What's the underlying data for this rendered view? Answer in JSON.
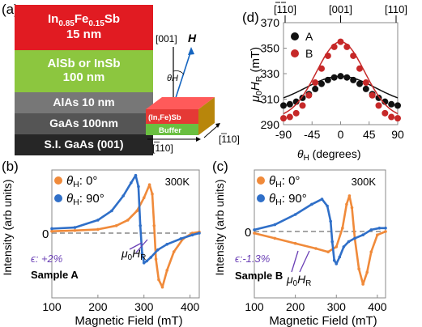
{
  "panel_a": {
    "label": "(a)",
    "layers": [
      {
        "line1": "In",
        "sub1": "0.85",
        "mid": "Fe",
        "sub2": "0.15",
        "end": "Sb",
        "line2": "15 nm",
        "color": "#e11b22"
      },
      {
        "line1": "AlSb or InSb",
        "line2": "100 nm",
        "color": "#8cc63f"
      },
      {
        "line1": "AlAs 10 nm",
        "color": "#777777"
      },
      {
        "line1": "GaAs 100nm",
        "color": "#555555"
      },
      {
        "line1": "S.I. GaAs (001)",
        "color": "#262626"
      }
    ],
    "crystal": {
      "axis_001": "[001]",
      "field_h": "H",
      "theta_h": "θH",
      "top_layer": "(In,Fe)Sb",
      "buffer": "Buffer",
      "dir_110": "[110]",
      "dir_m110": "[110]"
    }
  },
  "panel_d": {
    "label": "(d)",
    "top_labels": [
      "[110]",
      "[001]",
      "[110]"
    ],
    "ylabel": "μ0HR (mT)",
    "xlabel": "θH (degrees)",
    "legend": [
      "A",
      "B"
    ],
    "colors": {
      "A": "#111111",
      "B": "#c62828"
    }
  },
  "panel_b": {
    "label": "(b)",
    "legend_0": "θH: 0°",
    "legend_90": "θH: 90°",
    "temp": "300K",
    "strain": "ϵ: +2%",
    "sample": "Sample A",
    "hr_label": "μ0HR",
    "zero": "0",
    "ylabel": "Intensity (arb units)",
    "xlabel": "Magnetic Field (mT)",
    "colors": {
      "deg0": "#f08a3a",
      "deg90": "#2f6fc8"
    }
  },
  "panel_c": {
    "label": "(c)",
    "legend_0": "θH: 0°",
    "legend_90": "θH: 90°",
    "temp": "300K",
    "strain": "ϵ:-1.3%",
    "sample": "Sample B",
    "hr_label": "μ0HR",
    "zero": "0",
    "ylabel": "Intensity (arb units)",
    "xlabel": "Magnetic Field (mT)"
  },
  "chart_data": [
    {
      "type": "scatter",
      "title": "(d)",
      "xlabel": "θH (degrees)",
      "ylabel": "μ0HR (mT)",
      "xlim": [
        -90,
        90
      ],
      "ylim": [
        290,
        370
      ],
      "xticks": [
        -90,
        -45,
        0,
        45,
        90
      ],
      "yticks": [
        290,
        310,
        330,
        350,
        370
      ],
      "x": [
        -90,
        -80,
        -70,
        -60,
        -50,
        -40,
        -30,
        -20,
        -10,
        0,
        10,
        20,
        30,
        40,
        50,
        60,
        70,
        80,
        90
      ],
      "series": [
        {
          "name": "A",
          "values": [
            305,
            306,
            308,
            311,
            314,
            318,
            322,
            325,
            327,
            328,
            327,
            325,
            322,
            318,
            314,
            311,
            308,
            306,
            305
          ]
        },
        {
          "name": "B",
          "values": [
            295,
            296,
            299,
            305,
            313,
            323,
            334,
            344,
            351,
            355,
            351,
            344,
            334,
            323,
            313,
            305,
            299,
            296,
            295
          ]
        }
      ]
    },
    {
      "type": "line",
      "title": "(b)",
      "xlabel": "Magnetic Field (mT)",
      "ylabel": "Intensity (arb units)",
      "xlim": [
        100,
        420
      ],
      "xticks": [
        100,
        200,
        300,
        400
      ],
      "series": [
        {
          "name": "θH: 0°",
          "x": [
            100,
            150,
            200,
            240,
            265,
            285,
            300,
            312,
            318,
            322,
            326,
            332,
            340,
            350,
            365,
            385,
            405,
            420
          ],
          "values": [
            0.05,
            0.07,
            0.1,
            0.2,
            0.35,
            0.6,
            0.95,
            1.3,
            1.05,
            0.2,
            -0.7,
            -1.25,
            -1.45,
            -1.0,
            -0.5,
            -0.15,
            0.0,
            0.03
          ]
        },
        {
          "name": "θH: 90°",
          "x": [
            100,
            150,
            200,
            230,
            255,
            272,
            282,
            288,
            292,
            296,
            300,
            306,
            315,
            330,
            350,
            380,
            405,
            420
          ],
          "values": [
            0.12,
            0.15,
            0.35,
            0.6,
            1.0,
            1.35,
            1.55,
            1.25,
            0.2,
            -0.55,
            -0.8,
            -0.75,
            -0.65,
            -0.45,
            -0.3,
            -0.15,
            -0.05,
            0.0
          ]
        }
      ]
    },
    {
      "type": "line",
      "title": "(c)",
      "xlabel": "Magnetic Field (mT)",
      "ylabel": "Intensity (arb units)",
      "xlim": [
        100,
        420
      ],
      "xticks": [
        100,
        200,
        300,
        400
      ],
      "series": [
        {
          "name": "θH: 0°",
          "x": [
            100,
            150,
            200,
            250,
            280,
            300,
            315,
            325,
            332,
            338,
            345,
            355,
            365,
            375,
            385,
            400,
            420
          ],
          "values": [
            -0.05,
            -0.2,
            -0.35,
            -0.5,
            -0.6,
            -0.45,
            0.1,
            0.8,
            1.05,
            0.7,
            -0.2,
            -1.1,
            -1.55,
            -1.2,
            -0.6,
            -0.1,
            0.0
          ]
        },
        {
          "name": "θH: 90°",
          "x": [
            100,
            150,
            200,
            240,
            265,
            278,
            286,
            290,
            295,
            300,
            308,
            318,
            330,
            345,
            365,
            385,
            405,
            420
          ],
          "values": [
            0.05,
            0.2,
            0.5,
            0.8,
            0.95,
            0.75,
            0.3,
            -0.3,
            -0.85,
            -0.95,
            -0.75,
            -0.45,
            -0.3,
            -0.2,
            -0.1,
            0.05,
            0.1,
            0.1
          ]
        }
      ]
    }
  ]
}
